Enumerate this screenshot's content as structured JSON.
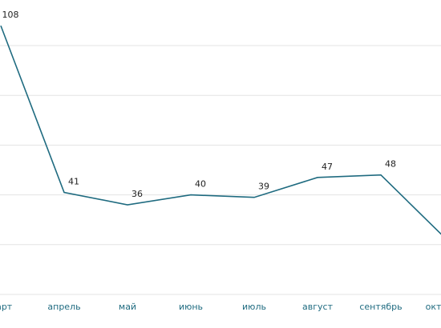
{
  "chart_data": {
    "type": "line",
    "categories": [
      "март",
      "апрель",
      "май",
      "июнь",
      "июль",
      "август",
      "сентябрь",
      "октябрь"
    ],
    "values": [
      108,
      41,
      36,
      40,
      39,
      47,
      48,
      23
    ],
    "color": "#1f6b80",
    "ylim": [
      0,
      100
    ],
    "yticks": [
      0,
      20,
      40,
      60,
      80,
      100
    ],
    "grid": true
  }
}
